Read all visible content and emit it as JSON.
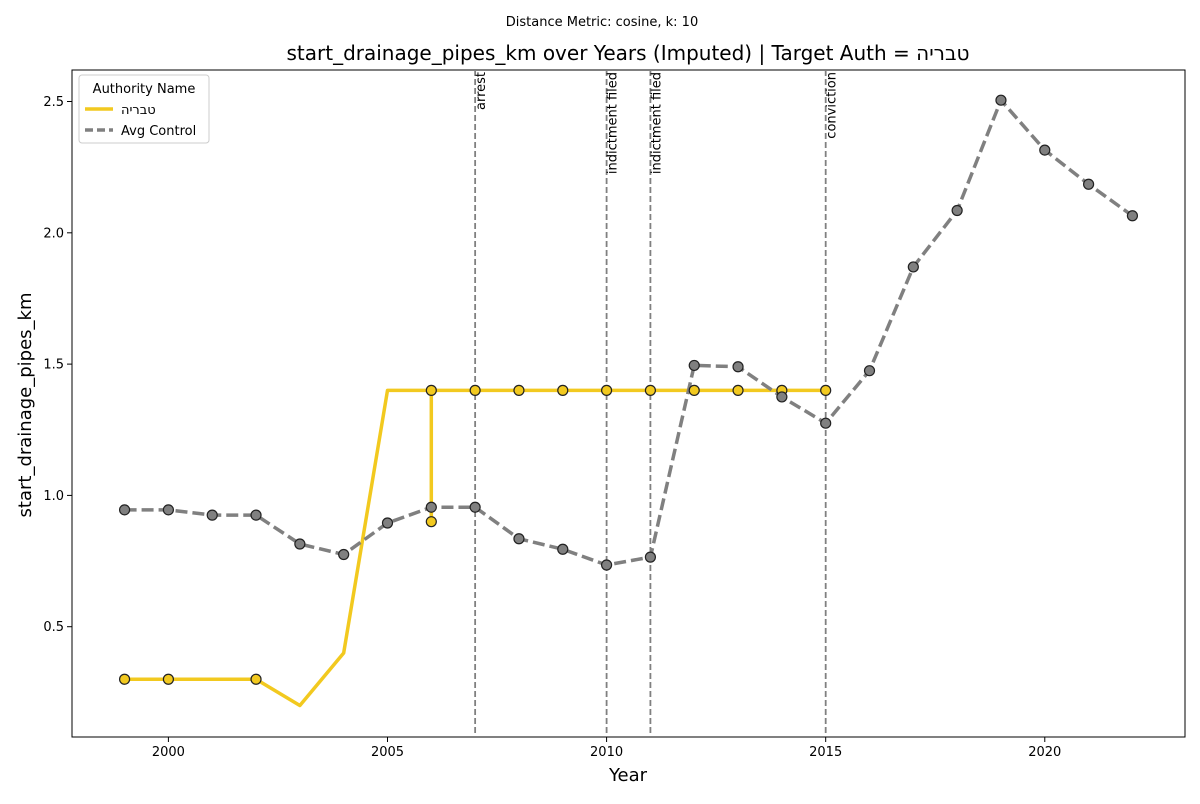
{
  "chart_data": {
    "type": "line",
    "suptitle": "Distance Metric: cosine, k: 10",
    "title": "start_drainage_pipes_km over Years (Imputed) | Target Auth = טבריה",
    "xlabel": "Year",
    "ylabel": "start_drainage_pipes_km",
    "xlim": [
      1997.8,
      2023.2
    ],
    "ylim": [
      0.08,
      2.62
    ],
    "xticks": [
      2000,
      2005,
      2010,
      2015,
      2020
    ],
    "yticks": [
      0.5,
      1.0,
      1.5,
      2.0,
      2.5
    ],
    "xtick_labels": [
      "2000",
      "2005",
      "2010",
      "2015",
      "2020"
    ],
    "ytick_labels": [
      "0.5",
      "1.0",
      "1.5",
      "2.0",
      "2.5"
    ],
    "grid": false,
    "legend": {
      "title": "Authority Name",
      "placement": "top-left",
      "entries": [
        "טבריה",
        "Avg Control"
      ]
    },
    "events": [
      {
        "x": 2007,
        "label": "arrest"
      },
      {
        "x": 2010,
        "label": "indictment filed"
      },
      {
        "x": 2011,
        "label": "indictment filed"
      },
      {
        "x": 2015,
        "label": "conviction"
      }
    ],
    "series": [
      {
        "name": "טבריה",
        "color": "#f2c91f",
        "style": "solid",
        "points": [
          [
            1999,
            0.3
          ],
          [
            1999,
            0.3
          ],
          [
            2000,
            0.3
          ],
          [
            2000,
            0.3
          ],
          [
            2002,
            0.3
          ],
          [
            2002,
            0.3
          ],
          [
            2003,
            0.2
          ],
          [
            2004,
            0.4
          ],
          [
            2005,
            1.4
          ],
          [
            2006,
            1.4
          ],
          [
            2006,
            0.9
          ],
          [
            2006,
            0.9
          ],
          [
            2006,
            1.4
          ],
          [
            2007,
            1.4
          ],
          [
            2007,
            1.4
          ],
          [
            2008,
            1.4
          ],
          [
            2008,
            1.4
          ],
          [
            2009,
            1.4
          ],
          [
            2009,
            1.4
          ],
          [
            2010,
            1.4
          ],
          [
            2010,
            1.4
          ],
          [
            2011,
            1.4
          ],
          [
            2011,
            1.4
          ],
          [
            2012,
            1.4
          ],
          [
            2012,
            1.4
          ],
          [
            2013,
            1.4
          ],
          [
            2013,
            1.4
          ],
          [
            2014,
            1.4
          ],
          [
            2014,
            1.4
          ],
          [
            2015,
            1.4
          ],
          [
            2015,
            1.4
          ]
        ],
        "breaks_after": [
          19,
          21,
          23,
          25,
          27
        ]
      },
      {
        "name": "Avg Control",
        "color": "#808080",
        "style": "dashed",
        "points": [
          [
            1999,
            0.945
          ],
          [
            2000,
            0.945
          ],
          [
            2001,
            0.925
          ],
          [
            2002,
            0.925
          ],
          [
            2003,
            0.815
          ],
          [
            2004,
            0.775
          ],
          [
            2005,
            0.895
          ],
          [
            2006,
            0.955
          ],
          [
            2007,
            0.955
          ],
          [
            2008,
            0.835
          ],
          [
            2009,
            0.795
          ],
          [
            2010,
            0.735
          ],
          [
            2011,
            0.765
          ],
          [
            2012,
            1.495
          ],
          [
            2013,
            1.49
          ],
          [
            2014,
            1.375
          ],
          [
            2015,
            1.275
          ],
          [
            2016,
            1.475
          ],
          [
            2017,
            1.87
          ],
          [
            2018,
            2.085
          ],
          [
            2019,
            2.505
          ],
          [
            2020,
            2.315
          ],
          [
            2021,
            2.185
          ],
          [
            2022,
            2.065
          ]
        ]
      }
    ]
  }
}
